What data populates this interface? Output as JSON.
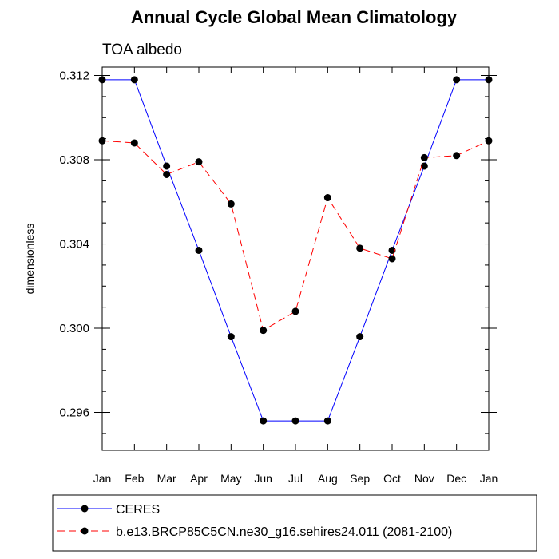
{
  "chart_data": {
    "type": "line",
    "title": "Annual Cycle Global Mean Climatology",
    "subtitle": "TOA albedo",
    "xlabel": "",
    "ylabel": "dimensionless",
    "categories": [
      "Jan",
      "Feb",
      "Mar",
      "Apr",
      "May",
      "Jun",
      "Jul",
      "Aug",
      "Sep",
      "Oct",
      "Nov",
      "Dec",
      "Jan"
    ],
    "ylim": [
      0.2942,
      0.3124
    ],
    "yticks": [
      {
        "value": 0.296,
        "label": "0.296"
      },
      {
        "value": 0.3,
        "label": "0.300"
      },
      {
        "value": 0.304,
        "label": "0.304"
      },
      {
        "value": 0.308,
        "label": "0.308"
      },
      {
        "value": 0.312,
        "label": "0.312"
      }
    ],
    "yminor_step": 0.001,
    "grid": false,
    "legend_position": "bottom",
    "series": [
      {
        "name": "CERES",
        "color": "#0000ff",
        "dash": "solid",
        "values": [
          0.3118,
          0.3118,
          0.3077,
          0.3037,
          0.2996,
          0.2956,
          0.2956,
          0.2956,
          0.2996,
          0.3037,
          0.3077,
          0.3118,
          0.3118
        ]
      },
      {
        "name": "b.e13.BRCP85C5CN.ne30_g16.sehires24.011 (2081-2100)",
        "color": "#ff0000",
        "dash": "dashed",
        "values": [
          0.3089,
          0.3088,
          0.3073,
          0.3079,
          0.3059,
          0.2999,
          0.3008,
          0.3062,
          0.3038,
          0.3033,
          0.3081,
          0.3082,
          0.3089
        ]
      }
    ]
  }
}
